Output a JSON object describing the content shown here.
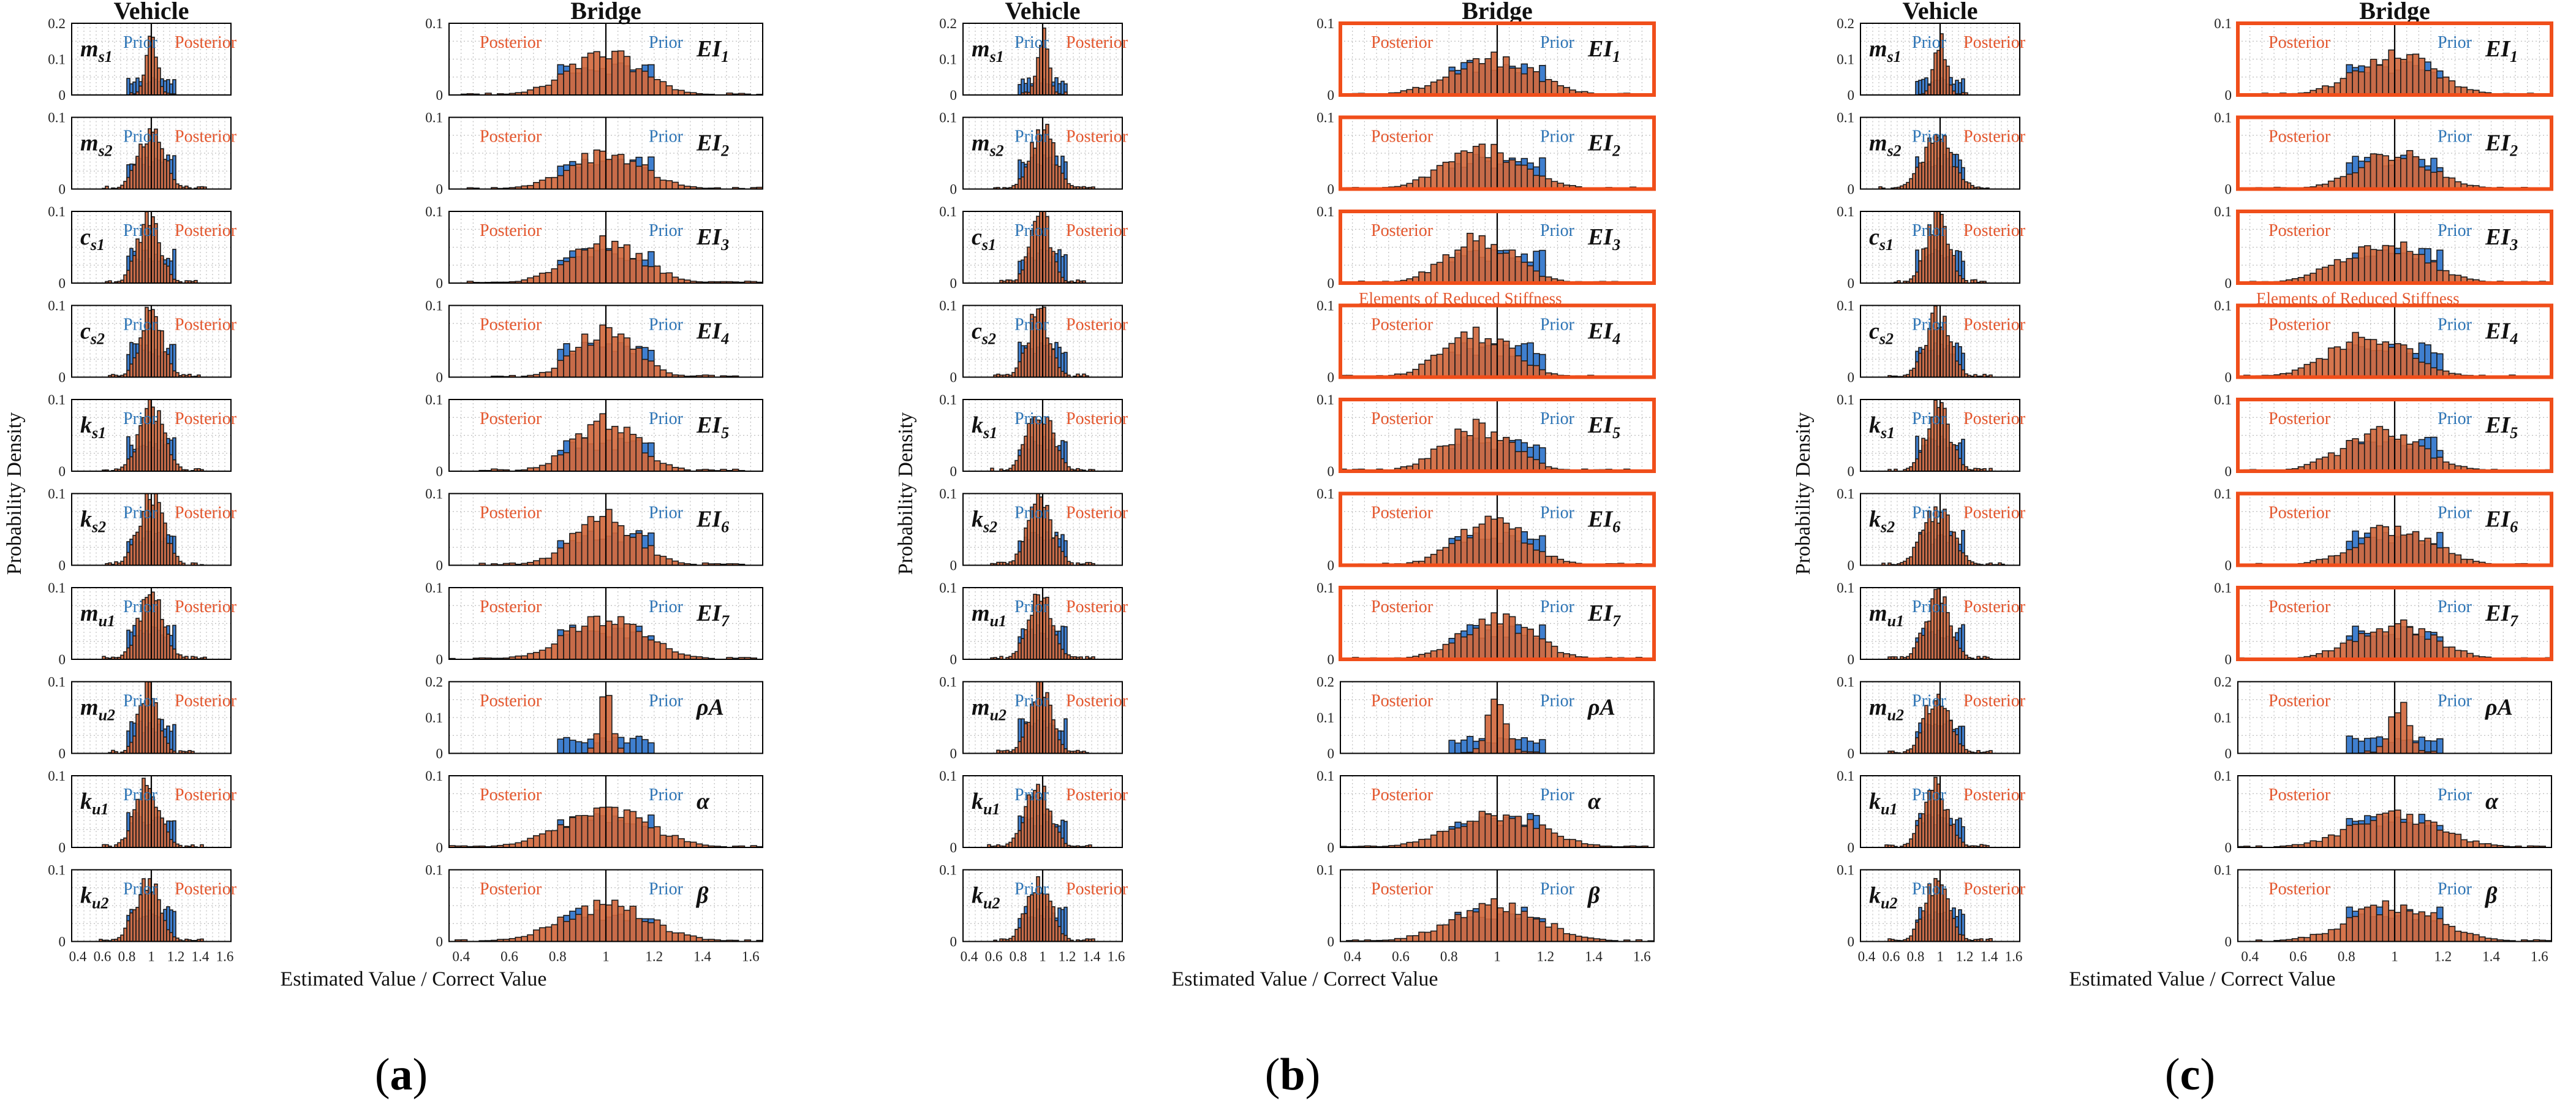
{
  "figure": {
    "column_titles": {
      "vehicle": "Vehicle",
      "bridge": "Bridge"
    },
    "y_axis_label": "Probability Density",
    "x_axis_label": "Estimated Value / Correct Value",
    "legend_labels": {
      "prior": "Prior",
      "posterior": "Posterior"
    },
    "reduced_stiffness_label": "Elements of Reduced Stiffness",
    "panel_labels": [
      "a",
      "b",
      "c"
    ]
  },
  "colors": {
    "prior": "#3F7FCF",
    "posterior": "#D2693E",
    "prior_text": "#2E75B6",
    "posterior_text": "#E4572E",
    "highlight": "#F04E1A",
    "grid": "#bdbdbd",
    "axis": "#000000"
  },
  "chart_data": {
    "type": "bar",
    "subtype": "histogram-grid",
    "x_range": [
      0.35,
      1.65
    ],
    "x_ticks": [
      0.4,
      0.6,
      0.8,
      1,
      1.2,
      1.4,
      1.6
    ],
    "x_tick_labels": [
      "0.4",
      "0.6",
      "0.8",
      "1",
      "1.2",
      "1.4",
      "1.6"
    ],
    "prior_range": [
      0.8,
      1.2
    ],
    "true_value": 1,
    "vehicle_parameters": [
      {
        "base": "m",
        "sub": "s1",
        "ylim": [
          0,
          0.2
        ],
        "yticks": [
          "0",
          "0.1",
          "0.2"
        ]
      },
      {
        "base": "m",
        "sub": "s2",
        "ylim": [
          0,
          0.1
        ],
        "yticks": [
          "0",
          "0.1"
        ]
      },
      {
        "base": "c",
        "sub": "s1",
        "ylim": [
          0,
          0.1
        ],
        "yticks": [
          "0",
          "0.1"
        ]
      },
      {
        "base": "c",
        "sub": "s2",
        "ylim": [
          0,
          0.1
        ],
        "yticks": [
          "0",
          "0.1"
        ]
      },
      {
        "base": "k",
        "sub": "s1",
        "ylim": [
          0,
          0.1
        ],
        "yticks": [
          "0",
          "0.1"
        ]
      },
      {
        "base": "k",
        "sub": "s2",
        "ylim": [
          0,
          0.1
        ],
        "yticks": [
          "0",
          "0.1"
        ]
      },
      {
        "base": "m",
        "sub": "u1",
        "ylim": [
          0,
          0.1
        ],
        "yticks": [
          "0",
          "0.1"
        ]
      },
      {
        "base": "m",
        "sub": "u2",
        "ylim": [
          0,
          0.1
        ],
        "yticks": [
          "0",
          "0.1"
        ]
      },
      {
        "base": "k",
        "sub": "u1",
        "ylim": [
          0,
          0.1
        ],
        "yticks": [
          "0",
          "0.1"
        ]
      },
      {
        "base": "k",
        "sub": "u2",
        "ylim": [
          0,
          0.1
        ],
        "yticks": [
          "0",
          "0.1"
        ]
      }
    ],
    "bridge_parameters": [
      {
        "base": "EI",
        "sub": "1",
        "ylim": [
          0,
          0.1
        ],
        "yticks": [
          "0",
          "0.1"
        ]
      },
      {
        "base": "EI",
        "sub": "2",
        "ylim": [
          0,
          0.1
        ],
        "yticks": [
          "0",
          "0.1"
        ]
      },
      {
        "base": "EI",
        "sub": "3",
        "ylim": [
          0,
          0.1
        ],
        "yticks": [
          "0",
          "0.1"
        ]
      },
      {
        "base": "EI",
        "sub": "4",
        "ylim": [
          0,
          0.1
        ],
        "yticks": [
          "0",
          "0.1"
        ]
      },
      {
        "base": "EI",
        "sub": "5",
        "ylim": [
          0,
          0.1
        ],
        "yticks": [
          "0",
          "0.1"
        ]
      },
      {
        "base": "EI",
        "sub": "6",
        "ylim": [
          0,
          0.1
        ],
        "yticks": [
          "0",
          "0.1"
        ]
      },
      {
        "base": "EI",
        "sub": "7",
        "ylim": [
          0,
          0.1
        ],
        "yticks": [
          "0",
          "0.1"
        ]
      },
      {
        "base": "ρA",
        "sub": "",
        "ylim": [
          0,
          0.2
        ],
        "yticks": [
          "0",
          "0.1",
          "0.2"
        ]
      },
      {
        "base": "α",
        "sub": "",
        "ylim": [
          0,
          0.1
        ],
        "yticks": [
          "0",
          "0.1"
        ]
      },
      {
        "base": "β",
        "sub": "",
        "ylim": [
          0,
          0.1
        ],
        "yticks": [
          "0",
          "0.1"
        ]
      }
    ],
    "panels": [
      {
        "label": "a",
        "vehicle_posterior": [
          {
            "mean": 1.0,
            "sd": 0.045,
            "peak": 0.17
          },
          {
            "mean": 1.0,
            "sd": 0.1,
            "peak": 0.085
          },
          {
            "mean": 0.98,
            "sd": 0.09,
            "peak": 0.095
          },
          {
            "mean": 1.0,
            "sd": 0.09,
            "peak": 0.09
          },
          {
            "mean": 1.0,
            "sd": 0.1,
            "peak": 0.085
          },
          {
            "mean": 1.0,
            "sd": 0.1,
            "peak": 0.1
          },
          {
            "mean": 1.0,
            "sd": 0.1,
            "peak": 0.09
          },
          {
            "mean": 0.98,
            "sd": 0.08,
            "peak": 0.09
          },
          {
            "mean": 0.97,
            "sd": 0.1,
            "peak": 0.085
          },
          {
            "mean": 0.97,
            "sd": 0.1,
            "peak": 0.085
          }
        ],
        "bridge_posterior": [
          {
            "mean": 1.0,
            "sd": 0.15,
            "peak": 0.055
          },
          {
            "mean": 1.0,
            "sd": 0.15,
            "peak": 0.05
          },
          {
            "mean": 1.0,
            "sd": 0.15,
            "peak": 0.055
          },
          {
            "mean": 1.0,
            "sd": 0.12,
            "peak": 0.065
          },
          {
            "mean": 1.0,
            "sd": 0.13,
            "peak": 0.07
          },
          {
            "mean": 1.0,
            "sd": 0.13,
            "peak": 0.065
          },
          {
            "mean": 1.0,
            "sd": 0.16,
            "peak": 0.055
          },
          {
            "mean": 1.0,
            "sd": 0.03,
            "peak": 0.15
          },
          {
            "mean": 1.0,
            "sd": 0.18,
            "peak": 0.05
          },
          {
            "mean": 1.0,
            "sd": 0.18,
            "peak": 0.05
          }
        ],
        "highlighted_bridge_rows": [],
        "reduced_stiffness_after_row": null
      },
      {
        "label": "b",
        "vehicle_posterior": [
          {
            "mean": 1.0,
            "sd": 0.045,
            "peak": 0.17
          },
          {
            "mean": 1.0,
            "sd": 0.1,
            "peak": 0.08
          },
          {
            "mean": 0.98,
            "sd": 0.08,
            "peak": 0.1
          },
          {
            "mean": 0.97,
            "sd": 0.09,
            "peak": 0.09
          },
          {
            "mean": 0.98,
            "sd": 0.1,
            "peak": 0.085
          },
          {
            "mean": 0.98,
            "sd": 0.1,
            "peak": 0.085
          },
          {
            "mean": 0.98,
            "sd": 0.1,
            "peak": 0.085
          },
          {
            "mean": 0.98,
            "sd": 0.09,
            "peak": 0.09
          },
          {
            "mean": 0.96,
            "sd": 0.1,
            "peak": 0.085
          },
          {
            "mean": 0.97,
            "sd": 0.1,
            "peak": 0.08
          }
        ],
        "bridge_posterior": [
          {
            "mean": 0.98,
            "sd": 0.17,
            "peak": 0.05
          },
          {
            "mean": 0.95,
            "sd": 0.16,
            "peak": 0.055
          },
          {
            "mean": 0.93,
            "sd": 0.14,
            "peak": 0.06
          },
          {
            "mean": 0.92,
            "sd": 0.14,
            "peak": 0.06
          },
          {
            "mean": 0.92,
            "sd": 0.14,
            "peak": 0.06
          },
          {
            "mean": 0.98,
            "sd": 0.14,
            "peak": 0.06
          },
          {
            "mean": 1.0,
            "sd": 0.15,
            "peak": 0.055
          },
          {
            "mean": 1.0,
            "sd": 0.04,
            "peak": 0.15
          },
          {
            "mean": 1.0,
            "sd": 0.18,
            "peak": 0.045
          },
          {
            "mean": 1.0,
            "sd": 0.18,
            "peak": 0.05
          }
        ],
        "highlighted_bridge_rows": [
          0,
          1,
          2,
          3,
          4,
          5,
          6
        ],
        "reduced_stiffness_after_row": 2
      },
      {
        "label": "c",
        "vehicle_posterior": [
          {
            "mean": 1.0,
            "sd": 0.05,
            "peak": 0.15
          },
          {
            "mean": 0.98,
            "sd": 0.12,
            "peak": 0.07
          },
          {
            "mean": 0.98,
            "sd": 0.09,
            "peak": 0.095
          },
          {
            "mean": 0.98,
            "sd": 0.1,
            "peak": 0.085
          },
          {
            "mean": 0.98,
            "sd": 0.1,
            "peak": 0.085
          },
          {
            "mean": 0.98,
            "sd": 0.12,
            "peak": 0.075
          },
          {
            "mean": 0.98,
            "sd": 0.1,
            "peak": 0.085
          },
          {
            "mean": 0.98,
            "sd": 0.1,
            "peak": 0.085
          },
          {
            "mean": 0.96,
            "sd": 0.1,
            "peak": 0.085
          },
          {
            "mean": 0.97,
            "sd": 0.1,
            "peak": 0.08
          }
        ],
        "bridge_posterior": [
          {
            "mean": 1.0,
            "sd": 0.16,
            "peak": 0.055
          },
          {
            "mean": 1.0,
            "sd": 0.15,
            "peak": 0.05
          },
          {
            "mean": 0.95,
            "sd": 0.17,
            "peak": 0.055
          },
          {
            "mean": 0.9,
            "sd": 0.16,
            "peak": 0.06
          },
          {
            "mean": 0.95,
            "sd": 0.16,
            "peak": 0.055
          },
          {
            "mean": 1.0,
            "sd": 0.16,
            "peak": 0.05
          },
          {
            "mean": 1.0,
            "sd": 0.16,
            "peak": 0.05
          },
          {
            "mean": 1.02,
            "sd": 0.04,
            "peak": 0.14
          },
          {
            "mean": 1.0,
            "sd": 0.18,
            "peak": 0.045
          },
          {
            "mean": 1.0,
            "sd": 0.18,
            "peak": 0.05
          }
        ],
        "highlighted_bridge_rows": [
          0,
          1,
          2,
          3,
          4,
          5,
          6
        ],
        "reduced_stiffness_after_row": 2
      }
    ]
  }
}
